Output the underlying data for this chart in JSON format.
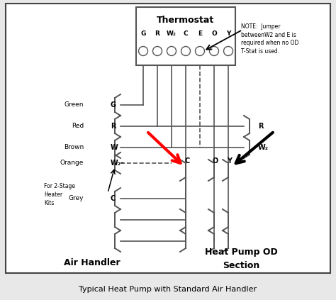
{
  "title": "Typical Heat Pump with Standard Air Handler",
  "bg_color": "#e8e8e8",
  "border_color": "#555555",
  "thermostat_label": "Thermostat",
  "thermostat_terminals": [
    "G",
    "R",
    "W₂",
    "C",
    "E",
    "O",
    "Y"
  ],
  "note_text": "NOTE:  Jumper\nbetweenW2 and E is\nrequired when no OD\nT-Stat is used.",
  "air_handler_label": "Air Handler",
  "heat_pump_label": "Heat Pump OD\nSection",
  "for_2stage_text": "For 2-Stage\nHeater\nKits",
  "wire_color": "#555555",
  "bg_inner": "#f5f5f5"
}
